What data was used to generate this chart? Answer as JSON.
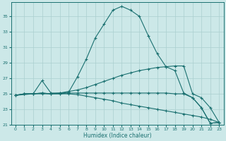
{
  "xlabel": "Humidex (Indice chaleur)",
  "background_color": "#cce8e8",
  "grid_color": "#aacfcf",
  "line_color": "#1a7070",
  "xlim": [
    -0.5,
    23.5
  ],
  "ylim": [
    21,
    36.8
  ],
  "yticks": [
    21,
    23,
    25,
    27,
    29,
    31,
    33,
    35
  ],
  "xticks": [
    0,
    1,
    2,
    3,
    4,
    5,
    6,
    7,
    8,
    9,
    10,
    11,
    12,
    13,
    14,
    15,
    16,
    17,
    18,
    19,
    20,
    21,
    22,
    23
  ],
  "line1_x": [
    0,
    1,
    2,
    3,
    4,
    5,
    6,
    7,
    8,
    9,
    10,
    11,
    12,
    13,
    14,
    15,
    16,
    17,
    18,
    19,
    20,
    21,
    22,
    23
  ],
  "line1_y": [
    24.8,
    25.0,
    25.0,
    25.0,
    25.0,
    25.1,
    25.2,
    27.2,
    29.5,
    32.2,
    34.0,
    35.8,
    36.3,
    35.8,
    35.0,
    32.5,
    30.2,
    28.5,
    28.0,
    25.1,
    24.5,
    23.2,
    21.2,
    21.3
  ],
  "line2_x": [
    0,
    2,
    3,
    4,
    5,
    6,
    7,
    8,
    9,
    10,
    11,
    12,
    13,
    14,
    15,
    16,
    17,
    18,
    19,
    20,
    21,
    22,
    23
  ],
  "line2_y": [
    24.8,
    25.0,
    26.7,
    25.1,
    25.1,
    25.3,
    25.5,
    25.8,
    26.2,
    26.6,
    27.0,
    27.4,
    27.7,
    28.0,
    28.2,
    28.4,
    28.5,
    28.6,
    28.6,
    25.0,
    24.5,
    23.2,
    21.3
  ],
  "line3_x": [
    0,
    1,
    2,
    3,
    4,
    5,
    6,
    7,
    8,
    9,
    10,
    11,
    12,
    13,
    14,
    15,
    16,
    17,
    18,
    19,
    20,
    21,
    22,
    23
  ],
  "line3_y": [
    24.8,
    25.0,
    25.0,
    25.1,
    25.0,
    25.0,
    25.1,
    25.1,
    25.1,
    25.1,
    25.1,
    25.1,
    25.1,
    25.1,
    25.1,
    25.1,
    25.1,
    25.1,
    25.0,
    25.0,
    24.5,
    23.2,
    21.2,
    21.3
  ],
  "line4_x": [
    0,
    1,
    2,
    3,
    4,
    5,
    6,
    7,
    8,
    9,
    10,
    11,
    12,
    13,
    14,
    15,
    16,
    17,
    18,
    19,
    20,
    21,
    22,
    23
  ],
  "line4_y": [
    24.8,
    25.0,
    25.0,
    25.1,
    25.0,
    25.0,
    25.0,
    24.9,
    24.7,
    24.5,
    24.3,
    24.1,
    23.8,
    23.6,
    23.4,
    23.2,
    23.0,
    22.8,
    22.6,
    22.4,
    22.2,
    22.0,
    21.7,
    21.3
  ]
}
